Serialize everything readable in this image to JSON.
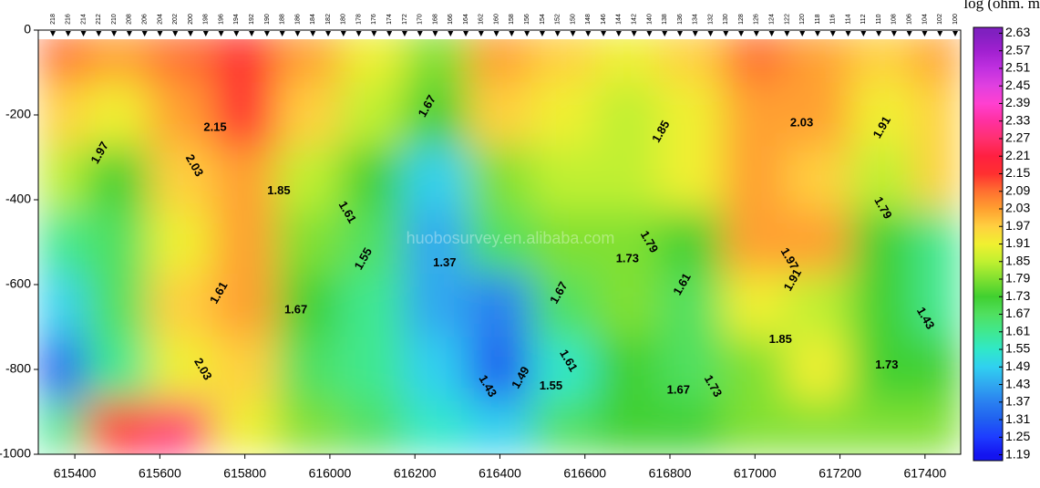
{
  "chart_data": {
    "type": "contour",
    "colorbar_title": "log (ohm. m",
    "watermark": "huobosurvey.en.alibaba.com",
    "xlim": [
      615314,
      617484
    ],
    "ylim": [
      -1000,
      0
    ],
    "xticks": [
      615400,
      615600,
      615800,
      616000,
      616200,
      616400,
      616600,
      616800,
      617000,
      617200,
      617400
    ],
    "yticks": [
      0,
      -200,
      -400,
      -600,
      -800,
      -1000
    ],
    "x": [
      615350,
      615500,
      615650,
      615800,
      615950,
      616100,
      616250,
      616400,
      616550,
      616700,
      616850,
      617000,
      617150,
      617300,
      617450
    ],
    "y": [
      -50,
      -200,
      -350,
      -500,
      -650,
      -800,
      -950
    ],
    "z": [
      [
        2.09,
        2.03,
        2.09,
        2.15,
        2.03,
        1.91,
        1.79,
        2.03,
        1.97,
        1.91,
        1.97,
        2.09,
        2.03,
        1.97,
        2.03
      ],
      [
        1.97,
        1.91,
        2.03,
        2.15,
        1.97,
        1.85,
        1.73,
        1.97,
        1.91,
        1.85,
        1.91,
        2.03,
        2.03,
        1.91,
        1.97
      ],
      [
        1.85,
        1.73,
        1.97,
        2.03,
        1.85,
        1.73,
        1.49,
        1.79,
        1.85,
        1.85,
        1.91,
        2.03,
        1.97,
        1.85,
        1.97
      ],
      [
        1.61,
        1.67,
        1.91,
        2.03,
        1.79,
        1.67,
        1.43,
        1.67,
        1.79,
        1.79,
        1.73,
        2.03,
        2.03,
        1.73,
        1.61
      ],
      [
        1.49,
        1.67,
        1.97,
        2.03,
        1.73,
        1.61,
        1.43,
        1.37,
        1.67,
        1.79,
        1.67,
        1.91,
        1.85,
        1.73,
        1.61
      ],
      [
        1.31,
        1.61,
        1.91,
        1.97,
        1.67,
        1.61,
        1.49,
        1.31,
        1.55,
        1.73,
        1.67,
        1.79,
        1.91,
        1.73,
        1.73
      ],
      [
        1.61,
        2.15,
        2.27,
        1.91,
        1.79,
        1.67,
        1.55,
        1.49,
        1.67,
        1.73,
        1.73,
        1.79,
        1.79,
        1.79,
        1.79
      ]
    ],
    "zlim": [
      1.17,
      2.65
    ],
    "colorbar_ticks": [
      1.19,
      1.25,
      1.31,
      1.37,
      1.43,
      1.49,
      1.55,
      1.61,
      1.67,
      1.73,
      1.79,
      1.85,
      1.91,
      1.97,
      2.03,
      2.09,
      2.15,
      2.21,
      2.27,
      2.33,
      2.39,
      2.45,
      2.51,
      2.57,
      2.63
    ],
    "colorbar_colors": [
      "#1414f0",
      "#1e3cff",
      "#2060f0",
      "#2a80f0",
      "#30a8f0",
      "#30d0f0",
      "#30e8c8",
      "#40e890",
      "#50e060",
      "#40d030",
      "#80e030",
      "#c0f030",
      "#f0f030",
      "#ffd040",
      "#ffa030",
      "#ff7030",
      "#ff3030",
      "#ff2040",
      "#ff3070",
      "#ff30a0",
      "#ff40d0",
      "#e040e0",
      "#c030e0",
      "#a020d0",
      "#8020c0"
    ],
    "stations": [
      "218",
      "216",
      "214",
      "212",
      "210",
      "208",
      "206",
      "204",
      "202",
      "200",
      "198",
      "196",
      "194",
      "192",
      "190",
      "188",
      "186",
      "184",
      "182",
      "180",
      "178",
      "176",
      "174",
      "172",
      "170",
      "168",
      "166",
      "164",
      "162",
      "160",
      "158",
      "156",
      "154",
      "152",
      "150",
      "148",
      "146",
      "144",
      "142",
      "140",
      "138",
      "136",
      "134",
      "132",
      "130",
      "128",
      "126",
      "124",
      "122",
      "120",
      "118",
      "116",
      "114",
      "112",
      "110",
      "108",
      "106",
      "104",
      "102",
      "100"
    ],
    "contour_labels": [
      {
        "text": "1.67",
        "x": 616230,
        "y": -180
      },
      {
        "text": "2.15",
        "x": 615730,
        "y": -230
      },
      {
        "text": "2.03",
        "x": 615680,
        "y": -320
      },
      {
        "text": "1.97",
        "x": 615460,
        "y": -290
      },
      {
        "text": "1.85",
        "x": 615880,
        "y": -380
      },
      {
        "text": "1.61",
        "x": 616040,
        "y": -430
      },
      {
        "text": "1.55",
        "x": 616080,
        "y": -540
      },
      {
        "text": "1.37",
        "x": 616270,
        "y": -550
      },
      {
        "text": "1.43",
        "x": 616370,
        "y": -840
      },
      {
        "text": "1.49",
        "x": 616450,
        "y": -820
      },
      {
        "text": "1.55",
        "x": 616520,
        "y": -840
      },
      {
        "text": "1.61",
        "x": 616560,
        "y": -780
      },
      {
        "text": "1.67",
        "x": 616540,
        "y": -620
      },
      {
        "text": "1.73",
        "x": 616700,
        "y": -540
      },
      {
        "text": "1.79",
        "x": 616750,
        "y": -500
      },
      {
        "text": "1.61",
        "x": 616830,
        "y": -600
      },
      {
        "text": "1.67",
        "x": 616820,
        "y": -850
      },
      {
        "text": "1.73",
        "x": 616900,
        "y": -840
      },
      {
        "text": "1.85",
        "x": 616780,
        "y": -240
      },
      {
        "text": "2.03",
        "x": 617110,
        "y": -220
      },
      {
        "text": "1.97",
        "x": 617080,
        "y": -540
      },
      {
        "text": "1.91",
        "x": 617090,
        "y": -590
      },
      {
        "text": "1.85",
        "x": 617060,
        "y": -730
      },
      {
        "text": "1.79",
        "x": 617300,
        "y": -420
      },
      {
        "text": "1.91",
        "x": 617300,
        "y": -230
      },
      {
        "text": "1.73",
        "x": 617310,
        "y": -790
      },
      {
        "text": "2.03",
        "x": 615700,
        "y": -800
      },
      {
        "text": "1.61",
        "x": 615740,
        "y": -620
      },
      {
        "text": "1.67",
        "x": 615920,
        "y": -660
      },
      {
        "text": "1.43",
        "x": 617400,
        "y": -680
      }
    ]
  }
}
